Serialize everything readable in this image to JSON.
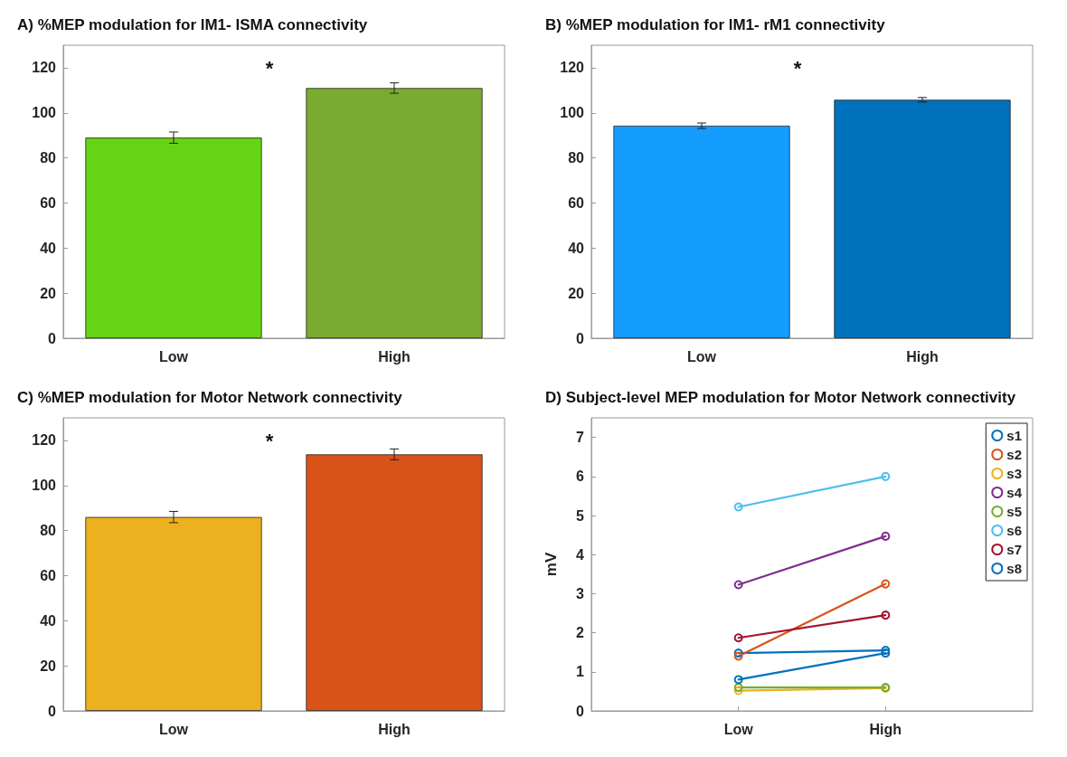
{
  "chart_data": [
    {
      "type": "bar",
      "title": "A) %MEP modulation for lM1- lSMA connectivity",
      "categories": [
        "Low",
        "High"
      ],
      "values": [
        89,
        111
      ],
      "colors": [
        "#66d414",
        "#78ab30"
      ],
      "errors": [
        2.5,
        2.3
      ],
      "ylim": [
        0,
        130
      ],
      "yticks": [
        0,
        20,
        40,
        60,
        80,
        100,
        120
      ],
      "grid": false,
      "annotations": [
        "*"
      ]
    },
    {
      "type": "bar",
      "title": "B) %MEP modulation for lM1- rM1 connectivity",
      "categories": [
        "Low",
        "High"
      ],
      "values": [
        94.3,
        105.8
      ],
      "colors": [
        "#159cff",
        "#0072bd"
      ],
      "errors": [
        1.2,
        1
      ],
      "ylim": [
        0,
        130
      ],
      "yticks": [
        0,
        20,
        40,
        60,
        80,
        100,
        120
      ],
      "grid": false,
      "annotations": [
        "*"
      ]
    },
    {
      "type": "bar",
      "title": "C) %MEP modulation for Motor Network connectivity",
      "categories": [
        "Low",
        "High"
      ],
      "values": [
        86,
        113.8
      ],
      "colors": [
        "#edb120",
        "#d95319"
      ],
      "errors": [
        2.5,
        2.4
      ],
      "ylim": [
        0,
        130
      ],
      "yticks": [
        0,
        20,
        40,
        60,
        80,
        100,
        120
      ],
      "grid": false,
      "annotations": [
        "*"
      ]
    },
    {
      "type": "line",
      "title": "D) Subject-level MEP modulation for Motor Network connectivity",
      "ylabel": "mV",
      "categories": [
        "Low",
        "High"
      ],
      "ylim": [
        0,
        7.5
      ],
      "yticks": [
        0,
        1,
        2,
        3,
        4,
        5,
        6,
        7
      ],
      "grid": false,
      "legend": "top right",
      "marker": "circle",
      "series": [
        {
          "name": "s1",
          "color": "#0072bd",
          "values": [
            1.48,
            1.55
          ]
        },
        {
          "name": "s2",
          "color": "#d95319",
          "values": [
            1.4,
            3.25
          ]
        },
        {
          "name": "s3",
          "color": "#edb120",
          "values": [
            0.52,
            0.58
          ]
        },
        {
          "name": "s4",
          "color": "#7e2f8e",
          "values": [
            3.23,
            4.47
          ]
        },
        {
          "name": "s5",
          "color": "#77ac30",
          "values": [
            0.6,
            0.6
          ]
        },
        {
          "name": "s6",
          "color": "#4dbeee",
          "values": [
            5.22,
            6.0
          ]
        },
        {
          "name": "s7",
          "color": "#a2142f",
          "values": [
            1.87,
            2.45
          ]
        },
        {
          "name": "s8",
          "color": "#0072bd",
          "values": [
            0.8,
            1.48
          ]
        }
      ]
    }
  ]
}
